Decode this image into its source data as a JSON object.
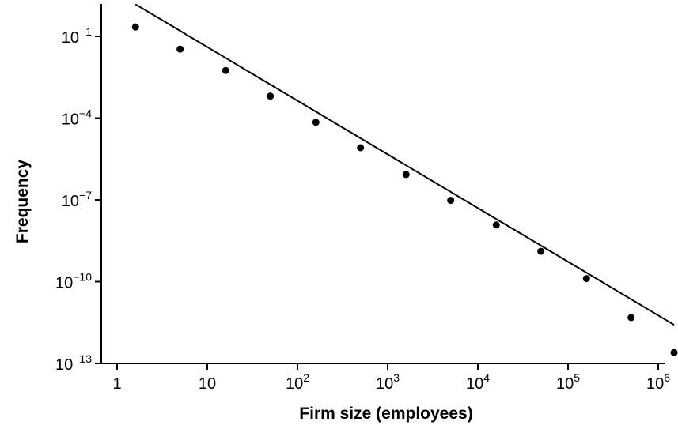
{
  "chart_data": {
    "type": "scatter",
    "title": "",
    "xlabel": "Firm size (employees)",
    "ylabel": "Frequency",
    "x_scale": "log",
    "y_scale": "log",
    "xlim": [
      1,
      1000000
    ],
    "ylim": [
      1e-13,
      1
    ],
    "grid": false,
    "legend": "none",
    "x_ticks": [
      {
        "value": 1,
        "base": "1",
        "exp": ""
      },
      {
        "value": 10,
        "base": "10",
        "exp": ""
      },
      {
        "value": 100,
        "base": "10",
        "exp": "2"
      },
      {
        "value": 1000,
        "base": "10",
        "exp": "3"
      },
      {
        "value": 10000,
        "base": "10",
        "exp": "4"
      },
      {
        "value": 100000,
        "base": "10",
        "exp": "5"
      },
      {
        "value": 1000000,
        "base": "10",
        "exp": "6"
      }
    ],
    "y_ticks": [
      {
        "value": 0.1,
        "base": "10",
        "exp": "−1"
      },
      {
        "value": 0.0001,
        "base": "10",
        "exp": "−4"
      },
      {
        "value": 1e-07,
        "base": "10",
        "exp": "−7"
      },
      {
        "value": 1e-10,
        "base": "10",
        "exp": "−10"
      },
      {
        "value": 1e-13,
        "base": "10",
        "exp": "−13"
      }
    ],
    "points": [
      {
        "x": 1.6,
        "y": 0.22
      },
      {
        "x": 5,
        "y": 0.034
      },
      {
        "x": 16,
        "y": 0.0056
      },
      {
        "x": 50,
        "y": 0.00064
      },
      {
        "x": 160,
        "y": 7e-05
      },
      {
        "x": 500,
        "y": 8.2e-06
      },
      {
        "x": 1600,
        "y": 8.5e-07
      },
      {
        "x": 5000,
        "y": 9.6e-08
      },
      {
        "x": 16000,
        "y": 1.2e-08
      },
      {
        "x": 50000,
        "y": 1.3e-09
      },
      {
        "x": 160000,
        "y": 1.3e-10
      },
      {
        "x": 500000,
        "y": 4.8e-12
      },
      {
        "x": 1500000,
        "y": 2.5e-13
      }
    ],
    "fit_line": {
      "x": [
        1.6,
        1500000
      ],
      "y": [
        1.5,
        2.6e-12
      ]
    },
    "colors": {
      "marker": "#000000",
      "line": "#000000",
      "axis": "#000000"
    }
  }
}
